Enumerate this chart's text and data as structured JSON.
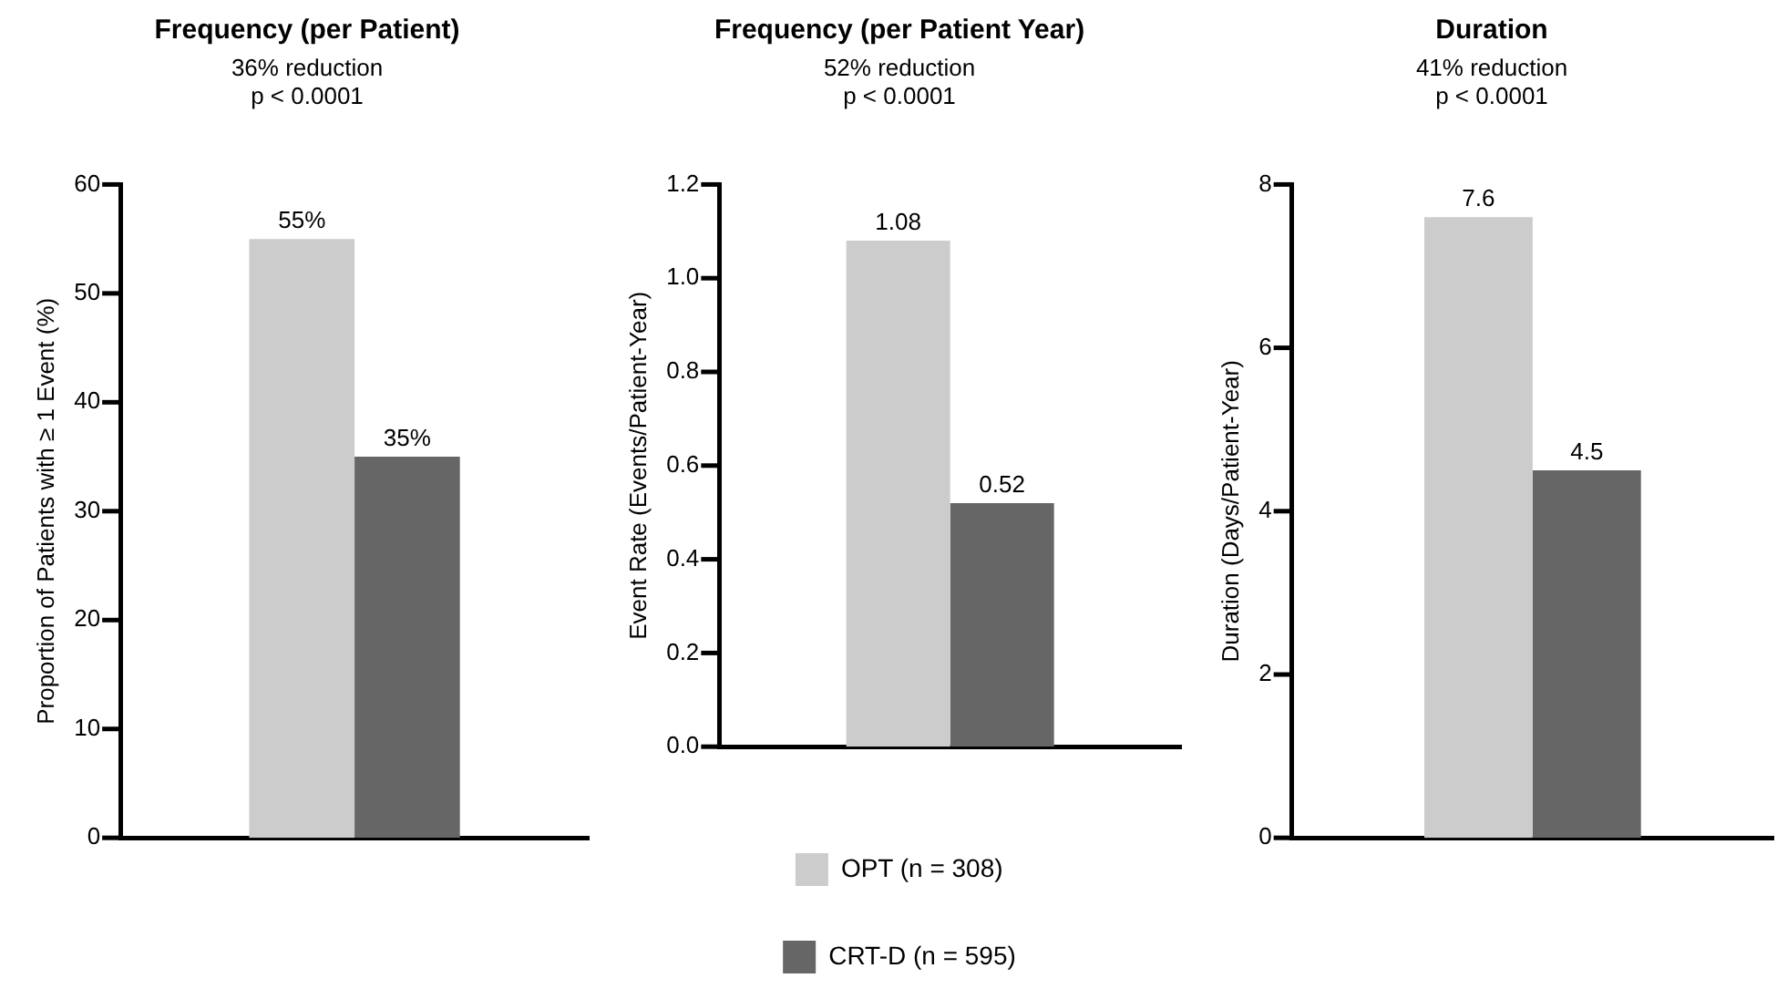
{
  "chart_data": [
    {
      "type": "bar",
      "title": "Frequency (per Patient)",
      "subtitle": "36% reduction\np < 0.0001",
      "ylabel": "Proportion of Patients with ≥ 1 Event (%)",
      "categories": [
        null
      ],
      "series": [
        {
          "color": "#cccccc",
          "values": [
            55
          ],
          "value_labels": [
            "55%"
          ]
        },
        {
          "color": "#666666",
          "values": [
            35
          ],
          "value_labels": [
            "35%"
          ]
        }
      ],
      "ylim": [
        0,
        60
      ],
      "yticks": [
        0,
        10,
        20,
        30,
        40,
        50,
        60
      ],
      "grid": false
    },
    {
      "type": "bar",
      "title": "Frequency (per Patient Year)",
      "subtitle": "52% reduction\np < 0.0001",
      "ylabel": "Event Rate (Events/Patient-Year)",
      "categories": [
        null
      ],
      "series": [
        {
          "name": "OPT (n = 308)",
          "color": "#cccccc",
          "values": [
            1.08
          ]
        },
        {
          "name": "CRT-D (n = 595)",
          "color": "#666666",
          "values": [
            0.52
          ]
        }
      ],
      "ylim": [
        0,
        1.2
      ],
      "yticks": [
        {
          "value": 0,
          "label": "0.0"
        },
        {
          "value": 0.2,
          "label": "0.2"
        },
        {
          "value": 0.4,
          "label": "0.4"
        },
        {
          "value": 0.6,
          "label": "0.6"
        },
        {
          "value": 0.8,
          "label": "0.8"
        },
        {
          "value": 1,
          "label": "1.0"
        },
        {
          "value": 1.2,
          "label": "1.2"
        }
      ],
      "grid": false,
      "data_labels": true,
      "legend": "bottom"
    },
    {
      "type": "bar",
      "title": "Duration",
      "subtitle": "41% reduction\np < 0.0001",
      "ylabel": "Duration (Days/Patient-Year)",
      "categories": [
        null
      ],
      "series": [
        {
          "color": "#cccccc",
          "values": [
            7.6
          ]
        },
        {
          "color": "#666666",
          "values": [
            4.5
          ]
        }
      ],
      "ylim": [
        0,
        8
      ],
      "yticks": [
        0,
        2,
        4,
        6,
        8
      ],
      "grid": false,
      "data_labels": true
    }
  ]
}
